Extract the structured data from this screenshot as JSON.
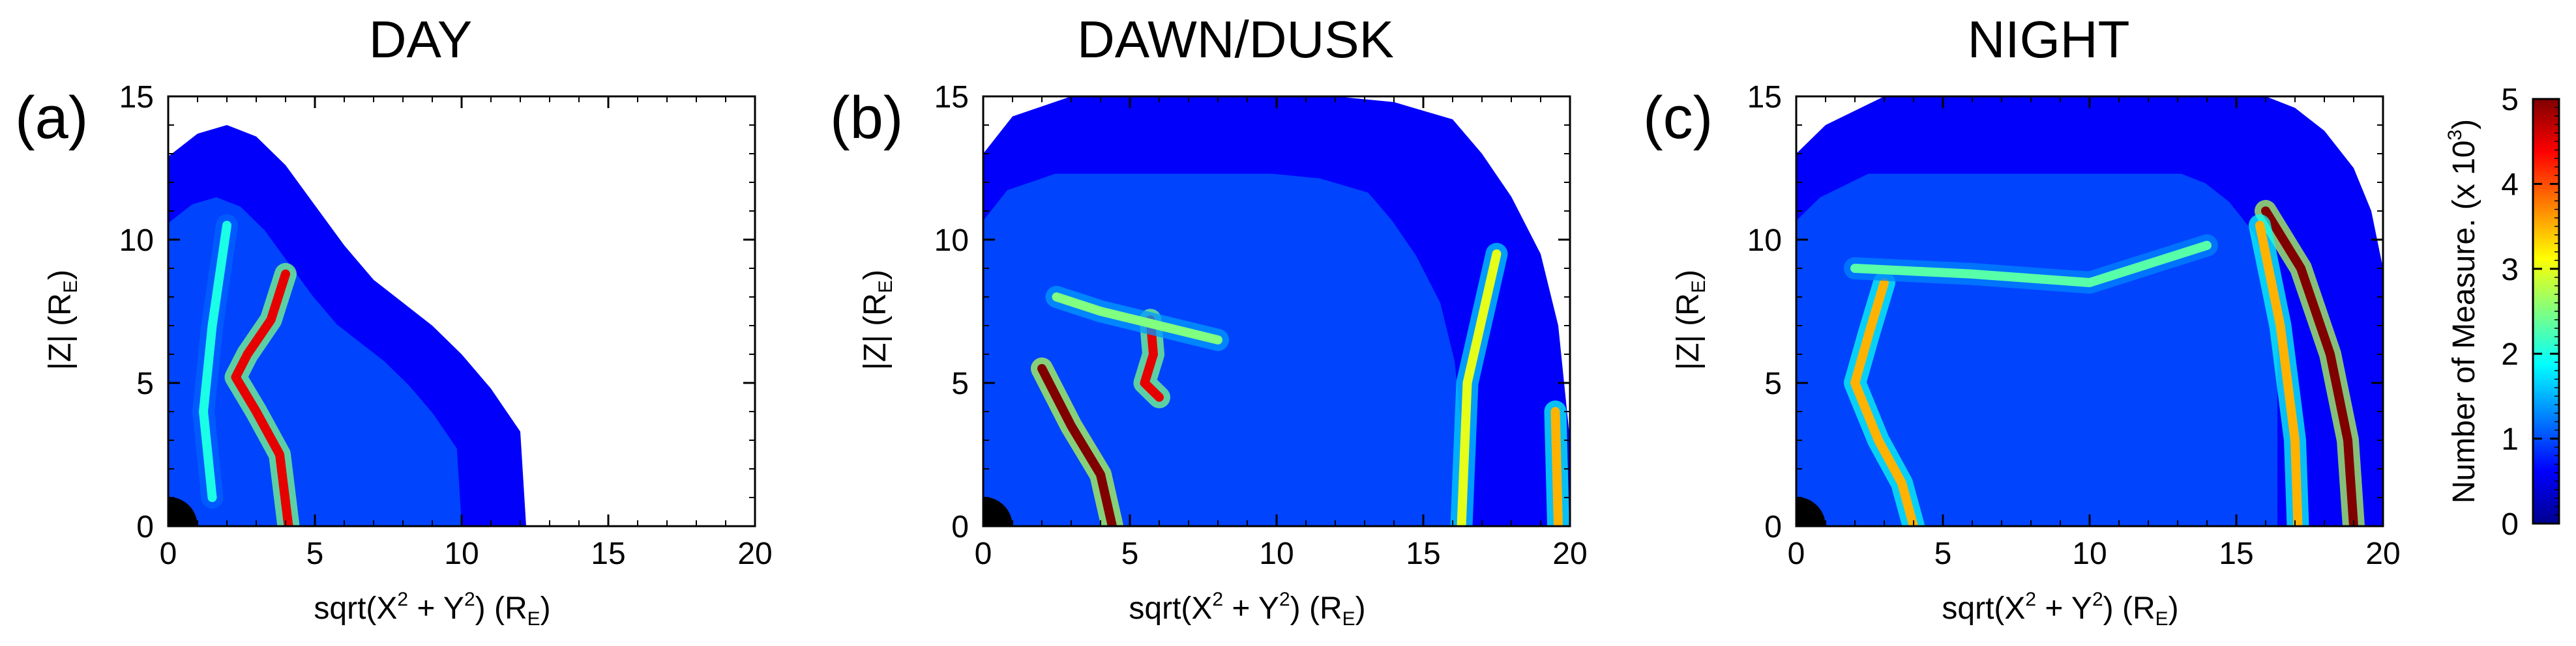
{
  "colorbar": {
    "label": "Number of Measure. (x 10",
    "label_exp": "3",
    "label_close": ")",
    "ticks": [
      "0",
      "1",
      "2",
      "3",
      "4",
      "5"
    ],
    "min": 0,
    "max": 5,
    "colormap": "jet",
    "colors": [
      "#00008f",
      "#0000ff",
      "#0080ff",
      "#00ffff",
      "#80ff80",
      "#ffff00",
      "#ff8000",
      "#ff0000",
      "#800000"
    ]
  },
  "axis_text": {
    "x_prefix": "sqrt(X",
    "x_sup": "2",
    "x_mid": " + Y",
    "x_sup2": "2",
    "x_mid2": ") (R",
    "x_sub": "E",
    "x_close": ")",
    "y_prefix": "|Z| (R",
    "y_sub": "E",
    "y_close": ")"
  },
  "chart_data": [
    {
      "type": "heatmap",
      "panel_label": "(a)",
      "title": "DAY",
      "xlim": [
        0,
        20
      ],
      "ylim": [
        0,
        15
      ],
      "x_ticks": [
        "0",
        "5",
        "10",
        "15",
        "20"
      ],
      "y_ticks": [
        "0",
        "5",
        "10",
        "15"
      ],
      "colorscale_range": [
        0,
        5
      ],
      "coverage_outline": [
        [
          0,
          12.9
        ],
        [
          1,
          13.7
        ],
        [
          2,
          14.0
        ],
        [
          3,
          13.6
        ],
        [
          4,
          12.6
        ],
        [
          5,
          11.2
        ],
        [
          6,
          9.8
        ],
        [
          7,
          8.6
        ],
        [
          8,
          7.8
        ],
        [
          9,
          7.0
        ],
        [
          10,
          6.0
        ],
        [
          11,
          4.8
        ],
        [
          12,
          3.3
        ],
        [
          12.2,
          0
        ]
      ],
      "ridges": [
        {
          "points": [
            [
              4.0,
              8.8
            ],
            [
              3.5,
              7.2
            ],
            [
              2.7,
              6.0
            ],
            [
              2.3,
              5.2
            ],
            [
              3.0,
              4.0
            ],
            [
              3.8,
              2.5
            ],
            [
              4.1,
              0
            ]
          ],
          "peak": 4.5
        },
        {
          "points": [
            [
              2.0,
              10.5
            ],
            [
              1.5,
              7.0
            ],
            [
              1.2,
              4.0
            ],
            [
              1.5,
              1.0
            ]
          ],
          "peak": 2.0
        }
      ]
    },
    {
      "type": "heatmap",
      "panel_label": "(b)",
      "title": "DAWN/DUSK",
      "xlim": [
        0,
        20
      ],
      "ylim": [
        0,
        15
      ],
      "x_ticks": [
        "0",
        "5",
        "10",
        "15",
        "20"
      ],
      "y_ticks": [
        "0",
        "5",
        "10",
        "15"
      ],
      "colorscale_range": [
        0,
        5
      ],
      "coverage_outline": [
        [
          0,
          13.0
        ],
        [
          1,
          14.3
        ],
        [
          3,
          15
        ],
        [
          12,
          15
        ],
        [
          14,
          14.8
        ],
        [
          16,
          14.2
        ],
        [
          17,
          13.0
        ],
        [
          18,
          11.5
        ],
        [
          19,
          9.5
        ],
        [
          19.6,
          7.0
        ],
        [
          20,
          3.0
        ],
        [
          20,
          0
        ]
      ],
      "ridges": [
        {
          "points": [
            [
              2.0,
              5.5
            ],
            [
              3.0,
              3.5
            ],
            [
              4.0,
              1.8
            ],
            [
              4.4,
              0
            ]
          ],
          "peak": 5.0
        },
        {
          "points": [
            [
              5.7,
              7.2
            ],
            [
              5.8,
              6.0
            ],
            [
              5.5,
              5.0
            ],
            [
              6.0,
              4.5
            ]
          ],
          "peak": 4.5
        },
        {
          "points": [
            [
              2.5,
              8.0
            ],
            [
              4.0,
              7.5
            ],
            [
              6.0,
              7.0
            ],
            [
              8.0,
              6.5
            ]
          ],
          "peak": 2.5
        },
        {
          "points": [
            [
              17.5,
              9.5
            ],
            [
              16.5,
              5.0
            ],
            [
              16.3,
              0
            ]
          ],
          "peak": 3.0
        },
        {
          "points": [
            [
              19.5,
              4.0
            ],
            [
              19.6,
              0
            ]
          ],
          "peak": 3.5
        }
      ]
    },
    {
      "type": "heatmap",
      "panel_label": "(c)",
      "title": "NIGHT",
      "xlim": [
        0,
        20
      ],
      "ylim": [
        0,
        15
      ],
      "x_ticks": [
        "0",
        "5",
        "10",
        "15",
        "20"
      ],
      "y_ticks": [
        "0",
        "5",
        "10",
        "15"
      ],
      "colorscale_range": [
        0,
        5
      ],
      "coverage_outline": [
        [
          0,
          13.0
        ],
        [
          1,
          14.0
        ],
        [
          3,
          15
        ],
        [
          16,
          15
        ],
        [
          17,
          14.6
        ],
        [
          18,
          13.8
        ],
        [
          19,
          12.5
        ],
        [
          19.6,
          11.0
        ],
        [
          20,
          9.0
        ],
        [
          20,
          0
        ]
      ],
      "ridges": [
        {
          "points": [
            [
              16.0,
              11.0
            ],
            [
              17.2,
              9.0
            ],
            [
              18.2,
              6.0
            ],
            [
              18.8,
              3.0
            ],
            [
              19.0,
              0
            ]
          ],
          "peak": 5.0
        },
        {
          "points": [
            [
              15.8,
              10.5
            ],
            [
              16.5,
              7.0
            ],
            [
              17.0,
              3.0
            ],
            [
              17.1,
              0
            ]
          ],
          "peak": 3.5
        },
        {
          "points": [
            [
              3.0,
              8.5
            ],
            [
              2.5,
              6.8
            ],
            [
              2.0,
              5.0
            ],
            [
              2.8,
              3.0
            ],
            [
              3.6,
              1.5
            ],
            [
              4.0,
              0
            ]
          ],
          "peak": 3.5
        },
        {
          "points": [
            [
              2.0,
              9.0
            ],
            [
              6.0,
              8.8
            ],
            [
              10.0,
              8.5
            ],
            [
              14.0,
              9.8
            ]
          ],
          "peak": 2.3
        }
      ]
    }
  ]
}
